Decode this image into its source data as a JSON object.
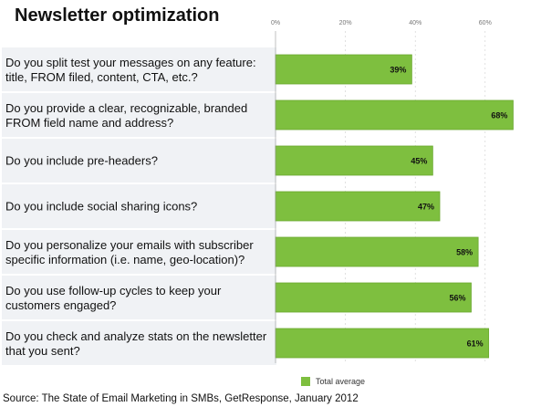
{
  "title": "Newsletter optimization",
  "source": "Source: The State of Email Marketing in SMBs, GetResponse, January 2012",
  "colors": {
    "bar": "#7ebf3f",
    "bar_edge": "#6aa82f",
    "row_bg": "#f0f2f5",
    "grid": "#cccccc"
  },
  "chart_data": {
    "type": "bar",
    "orientation": "horizontal",
    "xlim": [
      0,
      70
    ],
    "ticks": [
      "0%",
      "20%",
      "40%",
      "60%"
    ],
    "tick_values": [
      0,
      20,
      40,
      60
    ],
    "series": [
      {
        "name": "Total average",
        "values": [
          39,
          68,
          45,
          47,
          58,
          56,
          61
        ]
      }
    ],
    "value_labels": [
      "39%",
      "68%",
      "45%",
      "47%",
      "58%",
      "56%",
      "61%"
    ],
    "categories": [
      [
        "Do you split test your messages on any feature:",
        "title, FROM filed, content, CTA, etc.?"
      ],
      [
        "Do you provide a clear, recognizable, branded",
        "FROM field name and address?"
      ],
      [
        "Do you include pre-headers?"
      ],
      [
        "Do you include social sharing icons?"
      ],
      [
        "Do you personalize your emails with subscriber",
        "specific information (i.e. name, geo-location)?"
      ],
      [
        "Do you use follow-up cycles to keep your",
        "customers engaged?"
      ],
      [
        "Do you check and analyze stats on the newsletter",
        "that you sent?"
      ]
    ],
    "legend": {
      "label": "Total average",
      "position": "bottom"
    }
  }
}
